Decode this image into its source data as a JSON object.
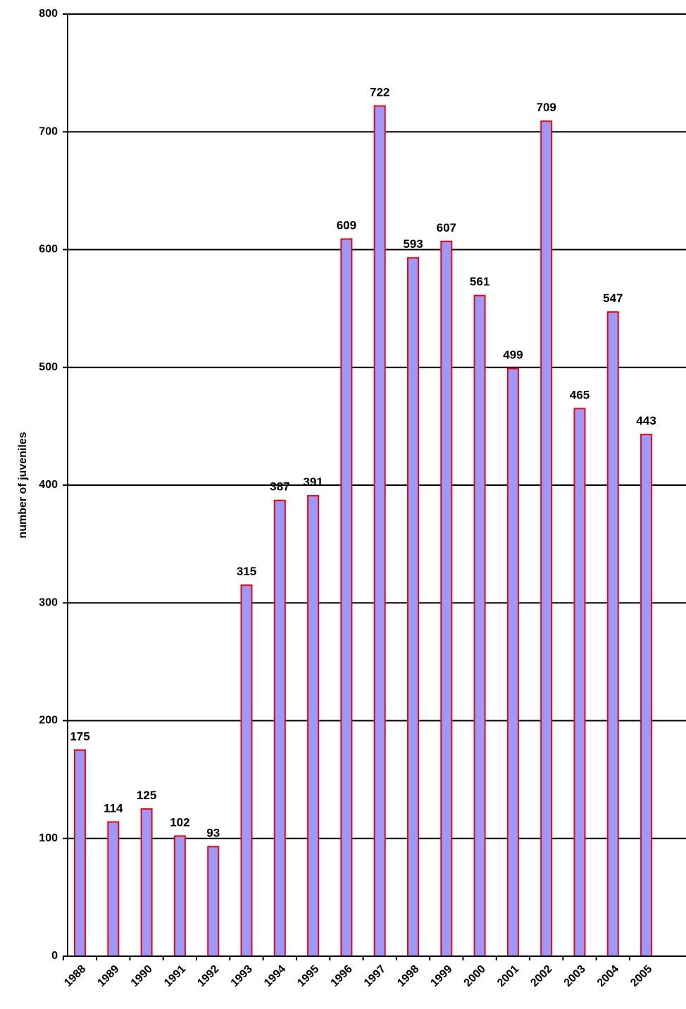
{
  "chart_data": {
    "type": "bar",
    "title": "",
    "xlabel": "",
    "ylabel": "number of juveniles",
    "ylim": [
      0,
      800
    ],
    "yticks": [
      0,
      100,
      200,
      300,
      400,
      500,
      600,
      700,
      800
    ],
    "grid": true,
    "legend": "none",
    "categories": [
      "1988",
      "1989",
      "1990",
      "1991",
      "1992",
      "1993",
      "1994",
      "1995",
      "1996",
      "1997",
      "1998",
      "1999",
      "2000",
      "2001",
      "2002",
      "2003",
      "2004",
      "2005"
    ],
    "values": [
      175,
      114,
      125,
      102,
      93,
      315,
      387,
      391,
      609,
      722,
      593,
      607,
      561,
      499,
      709,
      465,
      547,
      443
    ],
    "data_labels": [
      "175",
      "114",
      "125",
      "102",
      "93",
      "315",
      "387",
      "391",
      "609",
      "722",
      "593",
      "607",
      "561",
      "499",
      "709",
      "465",
      "547",
      "443"
    ],
    "colors": {
      "bar_fill": "#9999ff",
      "bar_edge": "#ff0000",
      "grid": "#000000",
      "axis": "#000000"
    }
  }
}
